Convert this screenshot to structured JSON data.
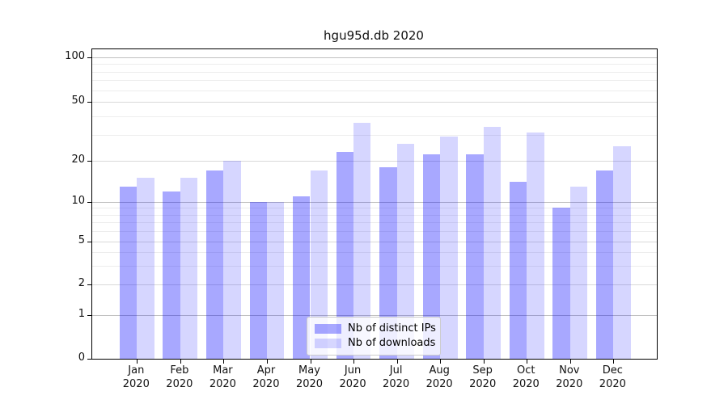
{
  "title": "hgu95d.db 2020",
  "chart_data": {
    "type": "bar",
    "title": "hgu95d.db 2020",
    "categories": [
      "Jan",
      "Feb",
      "Mar",
      "Apr",
      "May",
      "Jun",
      "Jul",
      "Aug",
      "Sep",
      "Oct",
      "Nov",
      "Dec"
    ],
    "xtick_year": "2020",
    "series": [
      {
        "name": "Nb of distinct IPs",
        "color": "rgba(0,0,255,0.34)",
        "values": [
          13,
          12,
          17,
          10,
          11,
          23,
          18,
          22,
          22,
          14,
          9,
          17
        ]
      },
      {
        "name": "Nb of downloads",
        "color": "rgba(0,0,255,0.16)",
        "values": [
          15,
          15,
          20,
          10,
          17,
          36,
          26,
          29,
          34,
          31,
          13,
          25
        ]
      }
    ],
    "yticks": [
      0,
      1,
      2,
      5,
      10,
      20,
      50,
      100
    ],
    "ylim": [
      0,
      120
    ],
    "yscale": "symlog",
    "grid": "horizontal major + log-minor gridlines",
    "legend_position": "lower-center-inside"
  }
}
